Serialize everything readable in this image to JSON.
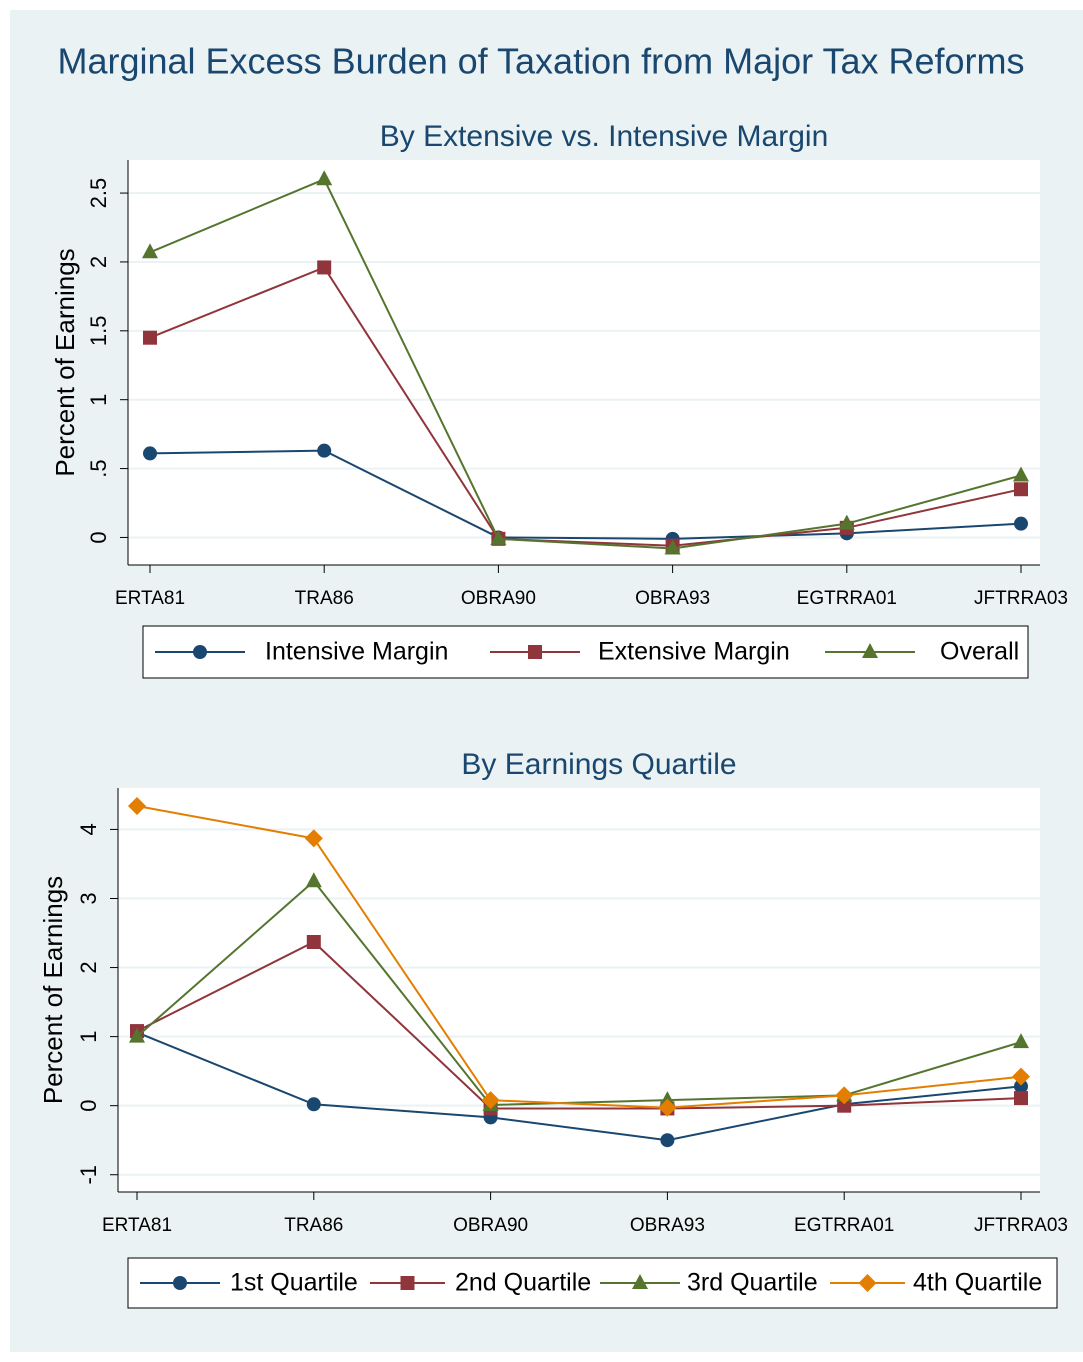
{
  "title": "Marginal Excess Burden of Taxation from Major Tax Reforms",
  "chart_data": [
    {
      "type": "line",
      "title": "By Extensive vs. Intensive Margin",
      "ylabel": "Percent of Earnings",
      "categories": [
        "ERTA81",
        "TRA86",
        "OBRA90",
        "OBRA93",
        "EGTRRA01",
        "JFTRRA03"
      ],
      "ylim": [
        -0.2,
        2.74
      ],
      "yticks": [
        0,
        {
          "value": 0.5,
          "label": ".5"
        },
        1,
        1.5,
        2,
        2.5
      ],
      "grid": true,
      "series": [
        {
          "name": "Intensive Margin",
          "color": "#1a476f",
          "marker": "circle",
          "values": [
            0.61,
            0.63,
            0.0,
            -0.01,
            0.03,
            0.1
          ]
        },
        {
          "name": "Extensive Margin",
          "color": "#90353b",
          "marker": "square",
          "values": [
            1.45,
            1.96,
            -0.01,
            -0.06,
            0.07,
            0.35
          ]
        },
        {
          "name": "Overall",
          "color": "#55752f",
          "marker": "triangle",
          "values": [
            2.07,
            2.6,
            -0.01,
            -0.08,
            0.1,
            0.45
          ]
        }
      ]
    },
    {
      "type": "line",
      "title": "By Earnings Quartile",
      "ylabel": "Percent of Earnings",
      "categories": [
        "ERTA81",
        "TRA86",
        "OBRA90",
        "OBRA93",
        "EGTRRA01",
        "JFTRRA03"
      ],
      "ylim": [
        -1.25,
        4.6
      ],
      "yticks": [
        -1,
        0,
        1,
        2,
        3,
        4
      ],
      "grid": true,
      "series": [
        {
          "name": "1st Quartile",
          "color": "#1a476f",
          "marker": "circle",
          "values": [
            1.06,
            0.02,
            -0.17,
            -0.5,
            0.02,
            0.28
          ]
        },
        {
          "name": "2nd Quartile",
          "color": "#90353b",
          "marker": "square",
          "values": [
            1.08,
            2.37,
            -0.04,
            -0.04,
            0.0,
            0.11
          ]
        },
        {
          "name": "3rd Quartile",
          "color": "#55752f",
          "marker": "triangle",
          "values": [
            1.0,
            3.25,
            0.01,
            0.08,
            0.15,
            0.92
          ]
        },
        {
          "name": "4th Quartile",
          "color": "#e37e00",
          "marker": "diamond",
          "values": [
            4.34,
            3.87,
            0.08,
            -0.03,
            0.15,
            0.42
          ]
        }
      ]
    }
  ]
}
